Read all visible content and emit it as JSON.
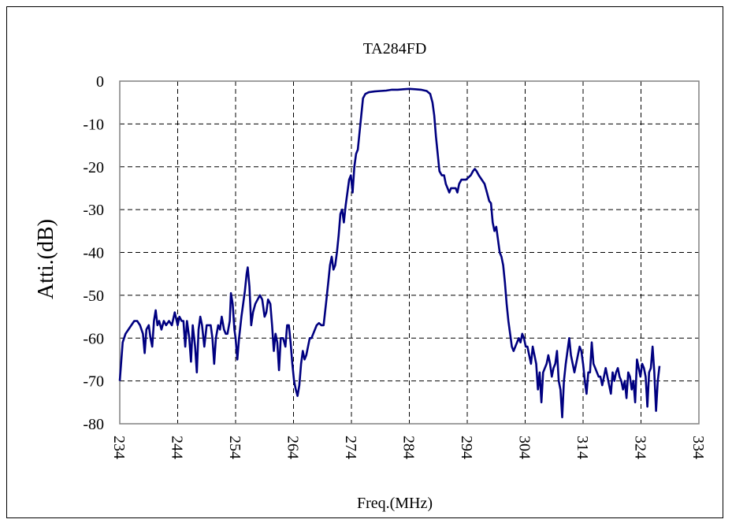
{
  "chart_data": {
    "type": "line",
    "title": "TA284FD",
    "xlabel": "Freq.(MHz)",
    "ylabel": "Atti.(dB)",
    "xlim": [
      234,
      334
    ],
    "ylim": [
      -80,
      0
    ],
    "x_ticks": [
      "234",
      "244",
      "254",
      "264",
      "274",
      "284",
      "294",
      "304",
      "314",
      "324",
      "334"
    ],
    "y_ticks": [
      "0",
      "-10",
      "-20",
      "-30",
      "-40",
      "-50",
      "-60",
      "-70",
      "-80"
    ],
    "grid": true,
    "series": [
      {
        "color": "#000080",
        "points": [
          [
            234.0,
            -70
          ],
          [
            234.5,
            -61
          ],
          [
            235.0,
            -59
          ],
          [
            235.5,
            -58
          ],
          [
            236.0,
            -57
          ],
          [
            236.5,
            -56
          ],
          [
            237.0,
            -56
          ],
          [
            237.5,
            -57
          ],
          [
            238.0,
            -59
          ],
          [
            238.3,
            -63.5
          ],
          [
            238.6,
            -58
          ],
          [
            239.0,
            -57
          ],
          [
            239.3,
            -60
          ],
          [
            239.6,
            -62
          ],
          [
            239.9,
            -56
          ],
          [
            240.2,
            -53.5
          ],
          [
            240.5,
            -57
          ],
          [
            240.8,
            -56
          ],
          [
            241.2,
            -58
          ],
          [
            241.6,
            -56
          ],
          [
            242.0,
            -57
          ],
          [
            242.5,
            -56
          ],
          [
            243.0,
            -57
          ],
          [
            243.5,
            -54
          ],
          [
            244.0,
            -57
          ],
          [
            244.3,
            -55
          ],
          [
            244.7,
            -56
          ],
          [
            245.0,
            -56
          ],
          [
            245.3,
            -62
          ],
          [
            245.6,
            -56
          ],
          [
            246.0,
            -60
          ],
          [
            246.3,
            -65.5
          ],
          [
            246.6,
            -57
          ],
          [
            247.0,
            -62
          ],
          [
            247.3,
            -68
          ],
          [
            247.6,
            -58
          ],
          [
            247.9,
            -55
          ],
          [
            248.2,
            -57
          ],
          [
            248.6,
            -62
          ],
          [
            249.0,
            -57
          ],
          [
            249.3,
            -57
          ],
          [
            249.7,
            -57
          ],
          [
            250.0,
            -60
          ],
          [
            250.3,
            -66
          ],
          [
            250.6,
            -60
          ],
          [
            251.0,
            -57
          ],
          [
            251.3,
            -58
          ],
          [
            251.6,
            -55
          ],
          [
            252.0,
            -58
          ],
          [
            252.3,
            -59
          ],
          [
            252.6,
            -59
          ],
          [
            253.0,
            -56
          ],
          [
            253.2,
            -49.5
          ],
          [
            253.5,
            -52
          ],
          [
            253.8,
            -58
          ],
          [
            254.0,
            -60
          ],
          [
            254.3,
            -65
          ],
          [
            254.6,
            -60
          ],
          [
            255.0,
            -55
          ],
          [
            255.3,
            -52
          ],
          [
            255.6,
            -49
          ],
          [
            255.9,
            -45
          ],
          [
            256.1,
            -43.5
          ],
          [
            256.4,
            -48
          ],
          [
            256.7,
            -57
          ],
          [
            257.0,
            -54
          ],
          [
            257.4,
            -52
          ],
          [
            257.8,
            -51
          ],
          [
            258.2,
            -50
          ],
          [
            258.6,
            -51
          ],
          [
            259.0,
            -55
          ],
          [
            259.3,
            -54
          ],
          [
            259.6,
            -51
          ],
          [
            260.0,
            -52
          ],
          [
            260.3,
            -57
          ],
          [
            260.6,
            -63
          ],
          [
            260.9,
            -59
          ],
          [
            261.2,
            -61
          ],
          [
            261.5,
            -67.5
          ],
          [
            261.8,
            -60
          ],
          [
            262.2,
            -60
          ],
          [
            262.6,
            -62
          ],
          [
            262.9,
            -57
          ],
          [
            263.2,
            -57
          ],
          [
            263.5,
            -61
          ],
          [
            263.8,
            -66
          ],
          [
            264.1,
            -70
          ],
          [
            264.4,
            -72
          ],
          [
            264.7,
            -73.5
          ],
          [
            265.0,
            -71
          ],
          [
            265.3,
            -66
          ],
          [
            265.6,
            -63
          ],
          [
            265.9,
            -65
          ],
          [
            266.2,
            -64
          ],
          [
            266.5,
            -62
          ],
          [
            266.8,
            -60
          ],
          [
            267.1,
            -60
          ],
          [
            267.4,
            -59
          ],
          [
            267.7,
            -58
          ],
          [
            268.0,
            -57
          ],
          [
            268.4,
            -56.5
          ],
          [
            268.8,
            -57
          ],
          [
            269.2,
            -57
          ],
          [
            269.6,
            -52
          ],
          [
            270.0,
            -47
          ],
          [
            270.3,
            -43
          ],
          [
            270.6,
            -41
          ],
          [
            270.9,
            -44
          ],
          [
            271.2,
            -43
          ],
          [
            271.5,
            -40
          ],
          [
            271.8,
            -36
          ],
          [
            272.1,
            -31
          ],
          [
            272.4,
            -30
          ],
          [
            272.7,
            -33
          ],
          [
            273.0,
            -29
          ],
          [
            273.3,
            -26
          ],
          [
            273.6,
            -23
          ],
          [
            273.9,
            -22
          ],
          [
            274.2,
            -26
          ],
          [
            274.5,
            -20
          ],
          [
            274.8,
            -17
          ],
          [
            275.1,
            -16
          ],
          [
            275.4,
            -12
          ],
          [
            275.7,
            -8
          ],
          [
            276.0,
            -4
          ],
          [
            276.4,
            -3
          ],
          [
            277.0,
            -2.6
          ],
          [
            278.0,
            -2.4
          ],
          [
            279.0,
            -2.3
          ],
          [
            280.0,
            -2.2
          ],
          [
            281.0,
            -2.0
          ],
          [
            282.0,
            -2.0
          ],
          [
            283.0,
            -1.9
          ],
          [
            284.0,
            -1.8
          ],
          [
            285.0,
            -1.9
          ],
          [
            286.0,
            -2.0
          ],
          [
            287.0,
            -2.3
          ],
          [
            287.6,
            -3
          ],
          [
            288.0,
            -5
          ],
          [
            288.3,
            -8
          ],
          [
            288.6,
            -13
          ],
          [
            288.9,
            -17
          ],
          [
            289.2,
            -21
          ],
          [
            289.6,
            -22
          ],
          [
            290.0,
            -22
          ],
          [
            290.3,
            -24
          ],
          [
            290.6,
            -25
          ],
          [
            290.9,
            -26
          ],
          [
            291.2,
            -25
          ],
          [
            291.6,
            -25
          ],
          [
            292.0,
            -25
          ],
          [
            292.3,
            -26
          ],
          [
            292.6,
            -24
          ],
          [
            293.0,
            -23
          ],
          [
            293.4,
            -23
          ],
          [
            293.8,
            -23
          ],
          [
            294.2,
            -22.5
          ],
          [
            294.6,
            -22
          ],
          [
            295.0,
            -21
          ],
          [
            295.3,
            -20.5
          ],
          [
            295.6,
            -21
          ],
          [
            296.0,
            -22
          ],
          [
            296.5,
            -23
          ],
          [
            297.0,
            -24
          ],
          [
            297.4,
            -26
          ],
          [
            297.8,
            -28
          ],
          [
            298.1,
            -28.5
          ],
          [
            298.4,
            -33
          ],
          [
            298.7,
            -35
          ],
          [
            299.0,
            -34
          ],
          [
            299.3,
            -37
          ],
          [
            299.6,
            -40
          ],
          [
            299.9,
            -41
          ],
          [
            300.2,
            -43
          ],
          [
            300.5,
            -47
          ],
          [
            300.8,
            -52
          ],
          [
            301.1,
            -56
          ],
          [
            301.4,
            -59
          ],
          [
            301.7,
            -62
          ],
          [
            302.0,
            -63
          ],
          [
            302.3,
            -62
          ],
          [
            302.6,
            -61
          ],
          [
            302.9,
            -60
          ],
          [
            303.2,
            -61
          ],
          [
            303.5,
            -59
          ],
          [
            303.8,
            -60
          ],
          [
            304.1,
            -62
          ],
          [
            304.4,
            -62
          ],
          [
            304.7,
            -64
          ],
          [
            305.0,
            -66
          ],
          [
            305.3,
            -62
          ],
          [
            305.6,
            -64
          ],
          [
            305.9,
            -66
          ],
          [
            306.2,
            -72
          ],
          [
            306.5,
            -68
          ],
          [
            306.8,
            -75
          ],
          [
            307.1,
            -68
          ],
          [
            307.4,
            -67
          ],
          [
            307.7,
            -66
          ],
          [
            308.0,
            -64
          ],
          [
            308.3,
            -66
          ],
          [
            308.6,
            -69
          ],
          [
            308.9,
            -67
          ],
          [
            309.2,
            -66
          ],
          [
            309.5,
            -63
          ],
          [
            309.8,
            -70
          ],
          [
            310.1,
            -72
          ],
          [
            310.4,
            -78.5
          ],
          [
            310.7,
            -70
          ],
          [
            311.0,
            -66
          ],
          [
            311.3,
            -63
          ],
          [
            311.6,
            -60
          ],
          [
            311.9,
            -64
          ],
          [
            312.2,
            -66
          ],
          [
            312.5,
            -68
          ],
          [
            312.8,
            -66
          ],
          [
            313.1,
            -64
          ],
          [
            313.4,
            -62
          ],
          [
            313.7,
            -63
          ],
          [
            314.0,
            -66
          ],
          [
            314.3,
            -70
          ],
          [
            314.6,
            -73
          ],
          [
            314.9,
            -68
          ],
          [
            315.2,
            -68
          ],
          [
            315.5,
            -61
          ],
          [
            315.8,
            -66
          ],
          [
            316.1,
            -67
          ],
          [
            316.4,
            -68
          ],
          [
            316.7,
            -69
          ],
          [
            317.0,
            -69
          ],
          [
            317.3,
            -71
          ],
          [
            317.6,
            -69
          ],
          [
            317.9,
            -67
          ],
          [
            318.2,
            -69
          ],
          [
            318.5,
            -71
          ],
          [
            318.8,
            -73
          ],
          [
            319.1,
            -68
          ],
          [
            319.4,
            -70
          ],
          [
            319.7,
            -68
          ],
          [
            320.0,
            -67
          ],
          [
            320.3,
            -69
          ],
          [
            320.6,
            -70
          ],
          [
            320.9,
            -72
          ],
          [
            321.2,
            -70
          ],
          [
            321.5,
            -74
          ],
          [
            321.8,
            -68
          ],
          [
            322.1,
            -69
          ],
          [
            322.4,
            -72
          ],
          [
            322.7,
            -70
          ],
          [
            323.0,
            -75
          ],
          [
            323.3,
            -65
          ],
          [
            323.6,
            -67
          ],
          [
            323.9,
            -69
          ],
          [
            324.2,
            -66
          ],
          [
            324.5,
            -67
          ],
          [
            324.8,
            -69
          ],
          [
            325.1,
            -76
          ],
          [
            325.4,
            -68
          ],
          [
            325.7,
            -67
          ],
          [
            326.0,
            -62
          ],
          [
            326.3,
            -68
          ],
          [
            326.6,
            -77
          ],
          [
            326.9,
            -70
          ],
          [
            327.2,
            -66.5
          ]
        ]
      }
    ]
  }
}
